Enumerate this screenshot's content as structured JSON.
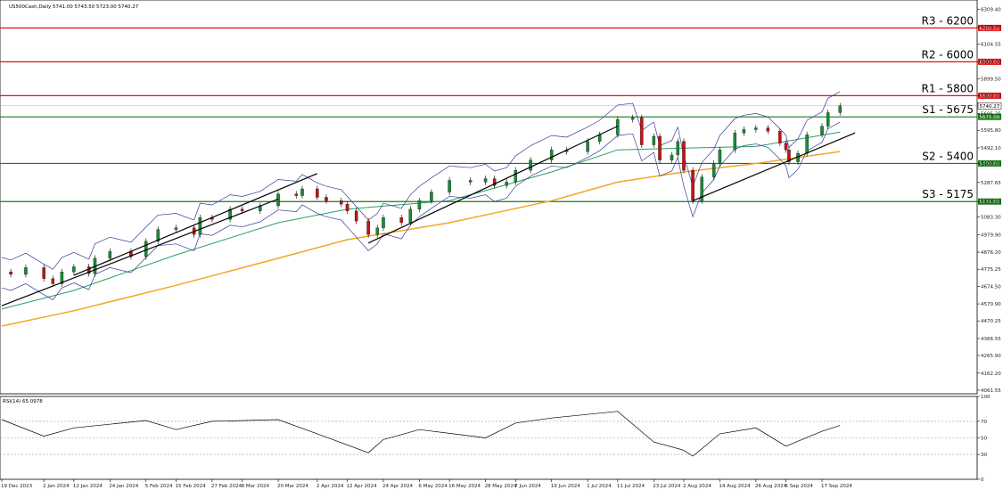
{
  "chart_data": {
    "type": "candlestick",
    "header": "US500Cash,Daily  5741.00 5743.50 5723.00 5740.27",
    "rsi_label": "RSI(14) 65.0978",
    "price_ticks": [
      "6309.40",
      "6205.90",
      "6104.55",
      "6000.00",
      "5899.50",
      "5800.00",
      "5695.25",
      "5595.80",
      "5492.10",
      "5400.00",
      "5287.65",
      "5175.00",
      "5083.30",
      "4979.90",
      "4876.20",
      "4775.25",
      "4674.50",
      "4570.90",
      "4470.25",
      "4366.55",
      "4265.90",
      "4162.20",
      "4061.55"
    ],
    "price_range": [
      4040,
      6365
    ],
    "rsi_ticks": [
      "100",
      "70",
      "50",
      "30",
      "0"
    ],
    "rsi_range": [
      0,
      100
    ],
    "x_ticks": [
      "19 Dec 2023",
      "2 Jan 2024",
      "12 Jan 2024",
      "24 Jan 2024",
      "5 Feb 2024",
      "15 Feb 2024",
      "27 Feb 2024",
      "8 Mar 2024",
      "20 Mar 2024",
      "2 Apr 2024",
      "12 Apr 2024",
      "24 Apr 2024",
      "6 May 2024",
      "16 May 2024",
      "28 May 2024",
      "7 Jun 2024",
      "19 Jun 2024",
      "1 Jul 2024",
      "11 Jul 2024",
      "23 Jul 2024",
      "2 Aug 2024",
      "14 Aug 2024",
      "26 Aug 2024",
      "5 Sep 2024",
      "17 Sep 2024"
    ],
    "levels": [
      {
        "label": "R3 - 6200",
        "value": 6200,
        "tag": "6200.00",
        "color": "#e01010"
      },
      {
        "label": "R2 - 6000",
        "value": 6000,
        "tag": "6000.00",
        "color": "#e01010"
      },
      {
        "label": "R1 - 5800",
        "value": 5800,
        "tag": "5800.00",
        "color": "#e01010"
      },
      {
        "label": "S1 - 5675",
        "value": 5675,
        "tag": "5675.00",
        "color": "#1a7a1a"
      },
      {
        "label": "S2 - 5400",
        "value": 5400,
        "tag": "5400.00",
        "color": "#1a7a1a"
      },
      {
        "label": "S3 - 5175",
        "value": 5175,
        "tag": "5175.00",
        "color": "#1a7a1a"
      }
    ],
    "last_price": {
      "tag": "5740.27",
      "value": 5740
    },
    "price_path": [
      [
        "19 Dec 2023",
        4760
      ],
      [
        "22 Dec 2023",
        4745
      ],
      [
        "27 Dec 2023",
        4785
      ],
      [
        "2 Jan 2024",
        4720
      ],
      [
        "5 Jan 2024",
        4690
      ],
      [
        "8 Jan 2024",
        4760
      ],
      [
        "12 Jan 2024",
        4790
      ],
      [
        "17 Jan 2024",
        4750
      ],
      [
        "19 Jan 2024",
        4840
      ],
      [
        "24 Jan 2024",
        4880
      ],
      [
        "31 Jan 2024",
        4850
      ],
      [
        "5 Feb 2024",
        4940
      ],
      [
        "9 Feb 2024",
        5010
      ],
      [
        "15 Feb 2024",
        5020
      ],
      [
        "21 Feb 2024",
        4980
      ],
      [
        "23 Feb 2024",
        5080
      ],
      [
        "27 Feb 2024",
        5070
      ],
      [
        "4 Mar 2024",
        5130
      ],
      [
        "8 Mar 2024",
        5120
      ],
      [
        "14 Mar 2024",
        5150
      ],
      [
        "20 Mar 2024",
        5220
      ],
      [
        "26 Mar 2024",
        5210
      ],
      [
        "28 Mar 2024",
        5250
      ],
      [
        "2 Apr 2024",
        5200
      ],
      [
        "5 Apr 2024",
        5180
      ],
      [
        "10 Apr 2024",
        5160
      ],
      [
        "12 Apr 2024",
        5120
      ],
      [
        "15 Apr 2024",
        5060
      ],
      [
        "19 Apr 2024",
        4980
      ],
      [
        "22 Apr 2024",
        5020
      ],
      [
        "24 Apr 2024",
        5080
      ],
      [
        "30 Apr 2024",
        5050
      ],
      [
        "3 May 2024",
        5130
      ],
      [
        "6 May 2024",
        5180
      ],
      [
        "10 May 2024",
        5230
      ],
      [
        "16 May 2024",
        5300
      ],
      [
        "23 May 2024",
        5290
      ],
      [
        "28 May 2024",
        5310
      ],
      [
        "31 May 2024",
        5270
      ],
      [
        "4 Jun 2024",
        5290
      ],
      [
        "7 Jun 2024",
        5360
      ],
      [
        "12 Jun 2024",
        5420
      ],
      [
        "19 Jun 2024",
        5480
      ],
      [
        "24 Jun 2024",
        5470
      ],
      [
        "1 Jul 2024",
        5530
      ],
      [
        "5 Jul 2024",
        5570
      ],
      [
        "11 Jul 2024",
        5660
      ],
      [
        "16 Jul 2024",
        5670
      ],
      [
        "19 Jul 2024",
        5510
      ],
      [
        "23 Jul 2024",
        5560
      ],
      [
        "25 Jul 2024",
        5420
      ],
      [
        "29 Jul 2024",
        5450
      ],
      [
        "31 Jul 2024",
        5530
      ],
      [
        "2 Aug 2024",
        5360
      ],
      [
        "5 Aug 2024",
        5180
      ],
      [
        "8 Aug 2024",
        5320
      ],
      [
        "12 Aug 2024",
        5400
      ],
      [
        "14 Aug 2024",
        5480
      ],
      [
        "19 Aug 2024",
        5580
      ],
      [
        "22 Aug 2024",
        5600
      ],
      [
        "26 Aug 2024",
        5610
      ],
      [
        "30 Aug 2024",
        5590
      ],
      [
        "3 Sep 2024",
        5520
      ],
      [
        "5 Sep 2024",
        5480
      ],
      [
        "6 Sep 2024",
        5410
      ],
      [
        "9 Sep 2024",
        5460
      ],
      [
        "12 Sep 2024",
        5570
      ],
      [
        "17 Sep 2024",
        5620
      ],
      [
        "19 Sep 2024",
        5700
      ],
      [
        "23 Sep 2024",
        5740
      ]
    ],
    "ma_fast_green": [
      [
        "19 Dec 2023",
        4540
      ],
      [
        "12 Jan 2024",
        4650
      ],
      [
        "15 Feb 2024",
        4860
      ],
      [
        "20 Mar 2024",
        5050
      ],
      [
        "12 Apr 2024",
        5130
      ],
      [
        "16 May 2024",
        5180
      ],
      [
        "19 Jun 2024",
        5350
      ],
      [
        "11 Jul 2024",
        5480
      ],
      [
        "2 Aug 2024",
        5490
      ],
      [
        "26 Aug 2024",
        5500
      ],
      [
        "23 Sep 2024",
        5585
      ]
    ],
    "ma_slow_orange": [
      [
        "19 Dec 2023",
        4440
      ],
      [
        "12 Jan 2024",
        4530
      ],
      [
        "15 Feb 2024",
        4680
      ],
      [
        "20 Mar 2024",
        4840
      ],
      [
        "12 Apr 2024",
        4950
      ],
      [
        "16 May 2024",
        5050
      ],
      [
        "19 Jun 2024",
        5180
      ],
      [
        "11 Jul 2024",
        5290
      ],
      [
        "2 Aug 2024",
        5350
      ],
      [
        "26 Aug 2024",
        5400
      ],
      [
        "23 Sep 2024",
        5470
      ]
    ],
    "rsi": [
      [
        "19 Dec 2023",
        72
      ],
      [
        "2 Jan 2024",
        52
      ],
      [
        "12 Jan 2024",
        62
      ],
      [
        "5 Feb 2024",
        71
      ],
      [
        "15 Feb 2024",
        60
      ],
      [
        "27 Feb 2024",
        70
      ],
      [
        "20 Mar 2024",
        72
      ],
      [
        "2 Apr 2024",
        55
      ],
      [
        "19 Apr 2024",
        32
      ],
      [
        "24 Apr 2024",
        48
      ],
      [
        "6 May 2024",
        60
      ],
      [
        "28 May 2024",
        50
      ],
      [
        "7 Jun 2024",
        68
      ],
      [
        "19 Jun 2024",
        74
      ],
      [
        "11 Jul 2024",
        82
      ],
      [
        "23 Jul 2024",
        45
      ],
      [
        "2 Aug 2024",
        35
      ],
      [
        "5 Aug 2024",
        28
      ],
      [
        "14 Aug 2024",
        55
      ],
      [
        "26 Aug 2024",
        62
      ],
      [
        "5 Sep 2024",
        40
      ],
      [
        "17 Sep 2024",
        58
      ],
      [
        "23 Sep 2024",
        65
      ]
    ]
  }
}
